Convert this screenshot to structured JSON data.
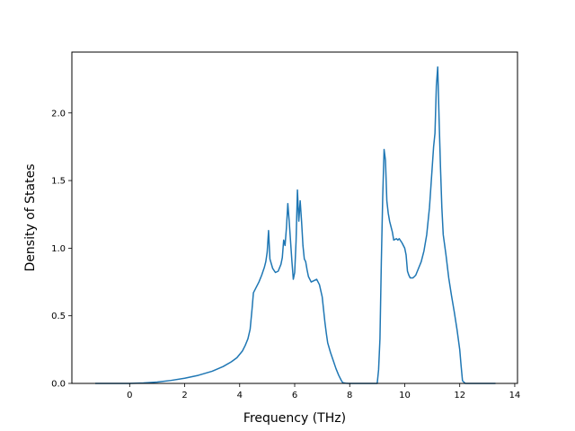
{
  "chart_data": {
    "type": "line",
    "title": "",
    "xlabel": "Frequency (THz)",
    "ylabel": "Density of States",
    "xlim": [
      -2.1,
      14.1
    ],
    "ylim": [
      0.0,
      2.45
    ],
    "xticks": [
      0,
      2,
      4,
      6,
      8,
      10,
      12,
      14
    ],
    "yticks": [
      0.0,
      0.5,
      1.0,
      1.5,
      2.0
    ],
    "xtick_labels": [
      "0",
      "2",
      "4",
      "6",
      "8",
      "10",
      "12",
      "14"
    ],
    "ytick_labels": [
      "0.0",
      "0.5",
      "1.0",
      "1.5",
      "2.0"
    ],
    "grid": false,
    "legend": false,
    "series": [
      {
        "color": "#1f77b4",
        "x": [
          -1.25,
          -0.5,
          0.0,
          0.5,
          1.0,
          1.5,
          2.0,
          2.5,
          3.0,
          3.4,
          3.7,
          3.9,
          4.1,
          4.2,
          4.3,
          4.38,
          4.45,
          4.5,
          4.6,
          4.7,
          4.8,
          4.9,
          4.95,
          5.0,
          5.05,
          5.1,
          5.2,
          5.3,
          5.4,
          5.5,
          5.55,
          5.6,
          5.65,
          5.7,
          5.75,
          5.8,
          5.9,
          5.95,
          6.0,
          6.05,
          6.1,
          6.15,
          6.2,
          6.25,
          6.3,
          6.35,
          6.4,
          6.45,
          6.5,
          6.55,
          6.6,
          6.7,
          6.8,
          6.9,
          7.0,
          7.1,
          7.15,
          7.2,
          7.3,
          7.4,
          7.5,
          7.6,
          7.7,
          7.75,
          7.85,
          7.95,
          8.1,
          8.5,
          9.0,
          9.05,
          9.1,
          9.15,
          9.2,
          9.25,
          9.3,
          9.35,
          9.4,
          9.45,
          9.5,
          9.55,
          9.6,
          9.7,
          9.75,
          9.8,
          9.9,
          10.0,
          10.05,
          10.1,
          10.15,
          10.2,
          10.3,
          10.4,
          10.5,
          10.6,
          10.7,
          10.8,
          10.9,
          11.0,
          11.05,
          11.1,
          11.15,
          11.2,
          11.25,
          11.3,
          11.35,
          11.4,
          11.5,
          11.6,
          11.7,
          11.8,
          11.9,
          12.0,
          12.05,
          12.1,
          12.2,
          12.5,
          13.0,
          13.3
        ],
        "y": [
          0.0,
          0.0,
          0.0,
          0.003,
          0.01,
          0.022,
          0.038,
          0.06,
          0.09,
          0.125,
          0.16,
          0.19,
          0.24,
          0.28,
          0.33,
          0.4,
          0.55,
          0.67,
          0.71,
          0.75,
          0.8,
          0.86,
          0.9,
          0.97,
          1.13,
          0.92,
          0.85,
          0.82,
          0.83,
          0.88,
          0.93,
          1.06,
          1.02,
          1.15,
          1.33,
          1.2,
          0.9,
          0.77,
          0.82,
          1.05,
          1.43,
          1.2,
          1.35,
          1.2,
          1.02,
          0.92,
          0.9,
          0.84,
          0.79,
          0.77,
          0.75,
          0.76,
          0.77,
          0.73,
          0.64,
          0.45,
          0.37,
          0.3,
          0.23,
          0.17,
          0.11,
          0.06,
          0.02,
          0.005,
          0.002,
          0.0,
          0.0,
          0.0,
          0.0,
          0.1,
          0.33,
          0.9,
          1.38,
          1.73,
          1.65,
          1.35,
          1.26,
          1.2,
          1.16,
          1.12,
          1.06,
          1.07,
          1.06,
          1.07,
          1.04,
          1.0,
          0.95,
          0.83,
          0.8,
          0.78,
          0.78,
          0.8,
          0.85,
          0.9,
          0.98,
          1.1,
          1.3,
          1.6,
          1.75,
          1.85,
          2.2,
          2.34,
          1.95,
          1.6,
          1.3,
          1.1,
          0.95,
          0.78,
          0.65,
          0.53,
          0.4,
          0.25,
          0.13,
          0.02,
          0.0,
          0.0,
          0.0,
          0.0
        ]
      }
    ]
  }
}
